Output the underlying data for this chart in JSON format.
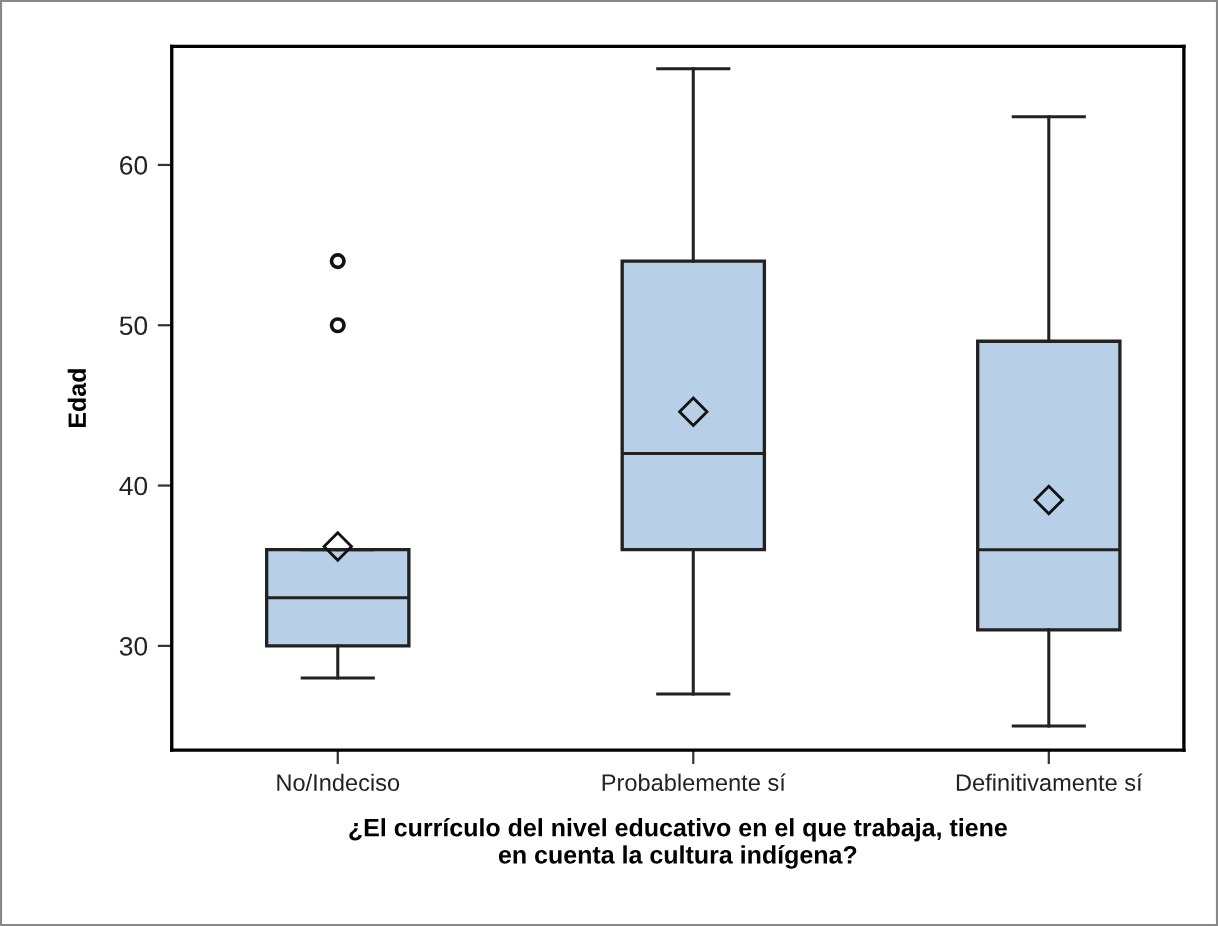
{
  "chart_data": {
    "type": "box",
    "xlabel": "¿El currículo del nivel educativo en el que trabaja, tiene\nen cuenta la cultura indígena?",
    "ylabel": "Edad",
    "categories": [
      "No/Indeciso",
      "Probablemente sí",
      "Definitivamente sí"
    ],
    "boxes": [
      {
        "low": 28,
        "q1": 30,
        "median": 33,
        "q3": 36,
        "high": 36,
        "mean": 36.2,
        "outliers": [
          50,
          54
        ]
      },
      {
        "low": 27,
        "q1": 36,
        "median": 42,
        "q3": 54,
        "high": 66,
        "mean": 44.6
      },
      {
        "low": 25,
        "q1": 31,
        "median": 36,
        "q3": 49,
        "high": 63,
        "mean": 39.1
      }
    ],
    "color": "#b8cfe8",
    "ylim": [
      23.5,
      67.4
    ],
    "yticks": [
      30,
      40,
      50,
      60
    ],
    "grid": false,
    "legend": false
  }
}
